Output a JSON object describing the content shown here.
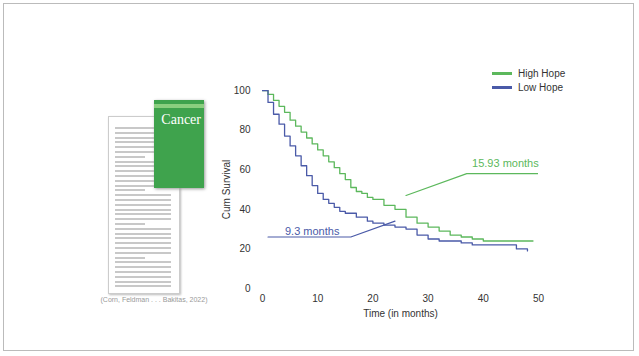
{
  "chart_data": {
    "type": "line",
    "line_style": "step",
    "caption": "(Corn, Feldman . . . Bakitas, 2022)",
    "thumbnail": {
      "journal": "Cancer"
    },
    "x_label": "Time (in months)",
    "y_label": "Cum Survival",
    "xlim": [
      0,
      50
    ],
    "xticks": [
      0,
      10,
      20,
      30,
      40,
      50
    ],
    "ylim": [
      0,
      100
    ],
    "yticks": [
      0,
      20,
      40,
      60,
      80,
      100
    ],
    "grid": false,
    "legend": "top-right",
    "series": [
      {
        "name": "High Hope",
        "color": "#5cb85c",
        "x": [
          0,
          1,
          2,
          3,
          4,
          5,
          6,
          7,
          8,
          9,
          10,
          11,
          12,
          13,
          14,
          15,
          16,
          17,
          18,
          19,
          20,
          22,
          24,
          26,
          28,
          30,
          32,
          34,
          36,
          38,
          40,
          43,
          46,
          49
        ],
        "values": [
          100,
          98,
          95,
          92,
          89,
          85,
          82,
          79,
          76,
          73,
          70,
          67,
          64,
          61,
          58,
          55,
          51,
          49,
          48,
          46,
          45,
          42,
          40,
          36,
          33,
          31,
          29,
          27,
          26,
          25,
          24,
          24,
          24,
          24
        ]
      },
      {
        "name": "Low Hope",
        "color": "#4a5aa8",
        "x": [
          0,
          1,
          2,
          3,
          4,
          5,
          6,
          7,
          8,
          9,
          10,
          11,
          12,
          13,
          14,
          15,
          17,
          19,
          20,
          22,
          24,
          26,
          28,
          30,
          32,
          34,
          36,
          38,
          40,
          42,
          44,
          46,
          48
        ],
        "values": [
          100,
          94,
          88,
          83,
          77,
          72,
          67,
          62,
          57,
          52,
          48,
          45,
          43,
          41,
          39,
          38,
          36,
          34,
          33,
          32,
          31,
          30,
          27,
          25,
          24,
          24,
          23,
          22,
          22,
          22,
          22,
          20,
          19
        ]
      }
    ],
    "annotations": [
      {
        "text": "15.93 months",
        "x": 44,
        "y": 63,
        "color": "#5cb85c",
        "line": {
          "x": [
            50,
            37,
            26
          ],
          "y": [
            58,
            58,
            47
          ]
        }
      },
      {
        "text": "9.3 months",
        "x": 9,
        "y": 29,
        "color": "#4a5aa8",
        "line": {
          "x": [
            1,
            16,
            24
          ],
          "y": [
            26,
            26,
            34
          ]
        }
      }
    ]
  }
}
